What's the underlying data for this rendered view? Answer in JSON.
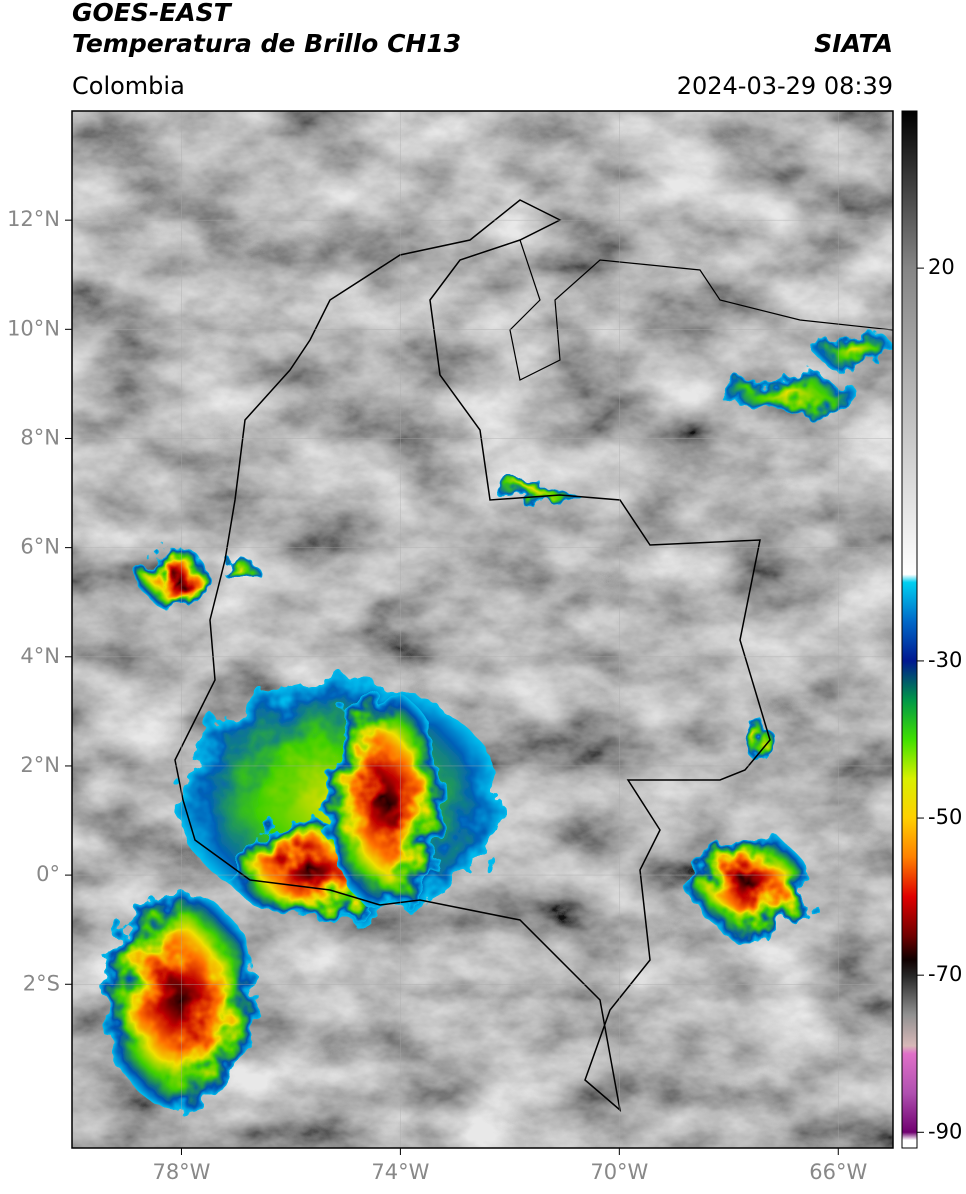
{
  "header": {
    "title": "GOES-EAST",
    "subtitle": "Temperatura de Brillo CH13",
    "source": "SIATA",
    "region": "Colombia",
    "datetime": "2024-03-29 08:39"
  },
  "map": {
    "xlim": [
      -80,
      -65
    ],
    "ylim": [
      -5,
      14
    ],
    "xticks": [
      {
        "value": -78,
        "label": "78°W"
      },
      {
        "value": -74,
        "label": "74°W"
      },
      {
        "value": -70,
        "label": "70°W"
      },
      {
        "value": -66,
        "label": "66°W"
      }
    ],
    "yticks": [
      {
        "value": 12,
        "label": "12°N"
      },
      {
        "value": 10,
        "label": "10°N"
      },
      {
        "value": 8,
        "label": "8°N"
      },
      {
        "value": 6,
        "label": "6°N"
      },
      {
        "value": 4,
        "label": "4°N"
      },
      {
        "value": 2,
        "label": "2°N"
      },
      {
        "value": 0,
        "label": "0°"
      },
      {
        "value": -2,
        "label": "2°S"
      }
    ],
    "grid": true
  },
  "colorbar": {
    "clim": [
      -92,
      40
    ],
    "ticks": [
      20,
      -30,
      -50,
      -70,
      -90
    ],
    "stops": [
      [
        40,
        "#000000"
      ],
      [
        20,
        "#858585"
      ],
      [
        -19,
        "#ffffff"
      ],
      [
        -20,
        "#00d0f0"
      ],
      [
        -25,
        "#0068c8"
      ],
      [
        -30,
        "#001890"
      ],
      [
        -35,
        "#009848"
      ],
      [
        -40,
        "#40e000"
      ],
      [
        -45,
        "#d8f000"
      ],
      [
        -50,
        "#ffd000"
      ],
      [
        -55,
        "#ff8000"
      ],
      [
        -60,
        "#e00000"
      ],
      [
        -65,
        "#700000"
      ],
      [
        -68,
        "#100000"
      ],
      [
        -70,
        "#252525"
      ],
      [
        -75,
        "#909090"
      ],
      [
        -79,
        "#d8b8b8"
      ],
      [
        -80,
        "#e070c8"
      ],
      [
        -85,
        "#b050b0"
      ],
      [
        -90,
        "#700070"
      ],
      [
        -91,
        "#ffffff"
      ],
      [
        -92,
        "#ffffff"
      ]
    ]
  }
}
